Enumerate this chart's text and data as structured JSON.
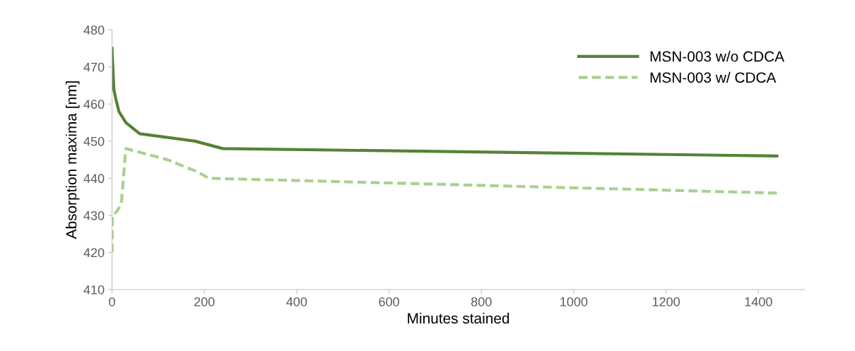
{
  "chart_data": {
    "type": "line",
    "xlabel": "Minutes stained",
    "ylabel": "Absorption maxima [nm]",
    "xlim": [
      0,
      1500
    ],
    "xticks": [
      0,
      200,
      400,
      600,
      800,
      1000,
      1200,
      1400
    ],
    "ylim": [
      410,
      480
    ],
    "yticks": [
      410,
      420,
      430,
      440,
      450,
      460,
      470,
      480
    ],
    "grid": false,
    "legend": "top right",
    "series": [
      {
        "name": "MSN-003 w/o CDCA",
        "color": "#548235",
        "line_style": "solid",
        "x": [
          0,
          4,
          8,
          15,
          30,
          60,
          180,
          240,
          1440
        ],
        "values": [
          475,
          464,
          461.5,
          458,
          455,
          452,
          450,
          448,
          446
        ]
      },
      {
        "name": "MSN-003 w/ CDCA",
        "color": "#a9d18e",
        "line_style": "dashed",
        "x": [
          0,
          1,
          10,
          20,
          30,
          120,
          180,
          210,
          1440
        ],
        "values": [
          420,
          430,
          431,
          433,
          448,
          445,
          442,
          440,
          436
        ]
      }
    ]
  }
}
